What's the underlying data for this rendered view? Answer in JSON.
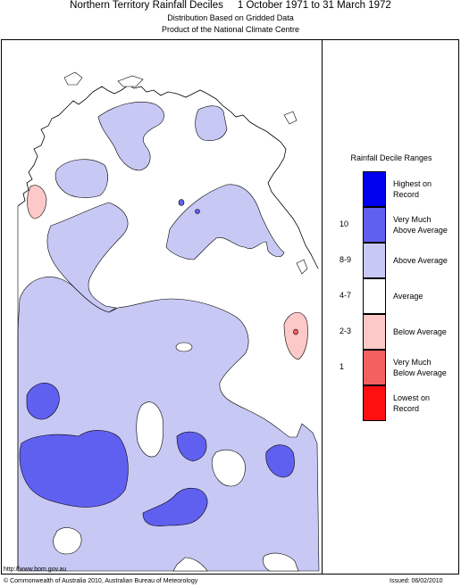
{
  "header": {
    "title": "Northern Territory Rainfall Deciles     1 October 1971 to 31 March 1972",
    "subtitle1": "Distribution Based on Gridded Data",
    "subtitle2": "Product of the National Climate Centre"
  },
  "legend": {
    "title": "Rainfall Decile Ranges",
    "entries": [
      {
        "label1": "Highest on",
        "label2": "Record",
        "range": "",
        "color": "#0000ee"
      },
      {
        "label1": "Very Much",
        "label2": "Above Average",
        "range": "10",
        "color": "#6060f0"
      },
      {
        "label1": "Above Average",
        "label2": "",
        "range": "8-9",
        "color": "#c8c8f4"
      },
      {
        "label1": "Average",
        "label2": "",
        "range": "4-7",
        "color": "#ffffff"
      },
      {
        "label1": "Below Average",
        "label2": "",
        "range": "2-3",
        "color": "#fcc8c8"
      },
      {
        "label1": "Very Much",
        "label2": "Below Average",
        "range": "1",
        "color": "#f46060"
      },
      {
        "label1": "Lowest on",
        "label2": "Record",
        "range": "",
        "color": "#ff1010"
      }
    ]
  },
  "footer": {
    "url": "http://www.bom.gov.au",
    "copyright": "© Commonwealth of Australia 2010, Australian Bureau of Meteorology",
    "issued": "Issued: 06/02/2010"
  },
  "map": {
    "above_color": "#c8c8f4",
    "very_much_above_color": "#6060f0",
    "below_color": "#fcc8c8"
  }
}
